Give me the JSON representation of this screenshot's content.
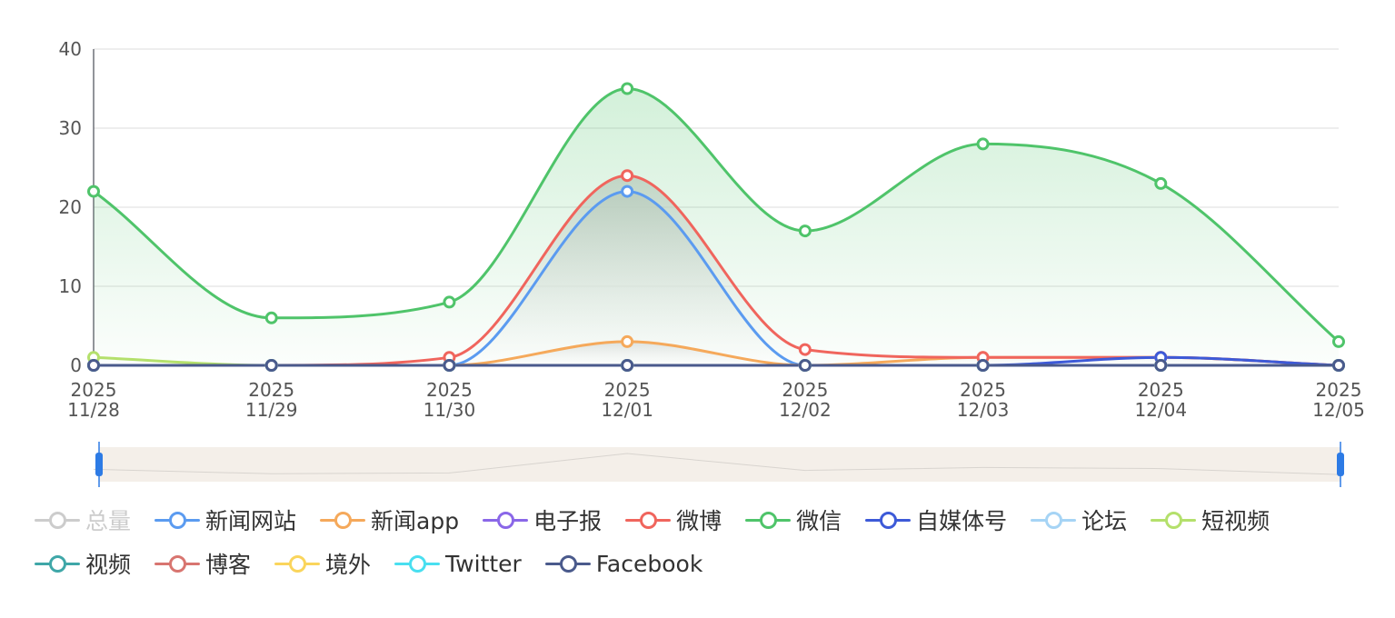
{
  "chart_data": {
    "type": "area",
    "x_date": [
      "2025",
      "2025",
      "2025",
      "2025",
      "2025",
      "2025",
      "2025",
      "2025"
    ],
    "x_md": [
      "11/28",
      "11/29",
      "11/30",
      "12/01",
      "12/02",
      "12/03",
      "12/04",
      "12/05"
    ],
    "ylim": [
      0,
      40
    ],
    "yticks": [
      0,
      10,
      20,
      30,
      40
    ],
    "grid": true,
    "legend_position": "bottom",
    "series": [
      {
        "name": "总量",
        "color": "#cccccc",
        "visible": false,
        "values": []
      },
      {
        "name": "新闻网站",
        "color": "#5b9bf0",
        "values": [
          0,
          0,
          0,
          22,
          0,
          0,
          0,
          0
        ]
      },
      {
        "name": "新闻app",
        "color": "#f5a95b",
        "values": [
          0,
          0,
          0,
          3,
          0,
          1,
          1,
          0
        ]
      },
      {
        "name": "电子报",
        "color": "#8a67e8",
        "values": [
          0,
          0,
          0,
          0,
          0,
          0,
          0,
          0
        ]
      },
      {
        "name": "微博",
        "color": "#f0655d",
        "values": [
          0,
          0,
          1,
          24,
          2,
          1,
          1,
          0
        ]
      },
      {
        "name": "微信",
        "color": "#4fc46a",
        "values": [
          22,
          6,
          8,
          35,
          17,
          28,
          23,
          3
        ]
      },
      {
        "name": "自媒体号",
        "color": "#3d5ad8",
        "values": [
          0,
          0,
          0,
          0,
          0,
          0,
          1,
          0
        ]
      },
      {
        "name": "论坛",
        "color": "#a6d4f5",
        "values": [
          0,
          0,
          0,
          0,
          0,
          0,
          0,
          0
        ]
      },
      {
        "name": "短视频",
        "color": "#b4e06c",
        "values": [
          1,
          0,
          0,
          0,
          0,
          0,
          0,
          0
        ]
      },
      {
        "name": "视频",
        "color": "#3fa7a8",
        "values": [
          0,
          0,
          0,
          0,
          0,
          0,
          0,
          0
        ]
      },
      {
        "name": "博客",
        "color": "#d87570",
        "values": [
          0,
          0,
          0,
          0,
          0,
          0,
          0,
          0
        ]
      },
      {
        "name": "境外",
        "color": "#fad55c",
        "values": [
          0,
          0,
          0,
          0,
          0,
          0,
          0,
          0
        ]
      },
      {
        "name": "Twitter",
        "color": "#49dff0",
        "values": [
          0,
          0,
          0,
          0,
          0,
          0,
          0,
          0
        ]
      },
      {
        "name": "Facebook",
        "color": "#4a5a8c",
        "values": [
          0,
          0,
          0,
          0,
          0,
          0,
          0,
          0
        ]
      }
    ],
    "zoom_slider": {
      "start_percent": 0,
      "end_percent": 100,
      "fill": "#f4efe9",
      "handle_color": "#2d7be5"
    }
  }
}
